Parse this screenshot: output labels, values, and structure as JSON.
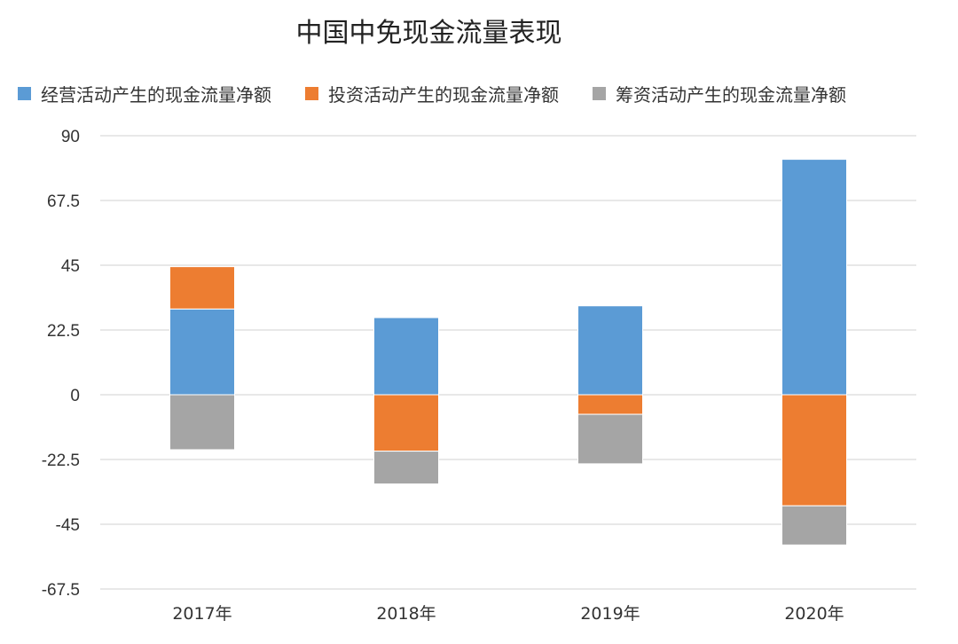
{
  "chart_data": {
    "type": "bar",
    "stacked": true,
    "title": "中国中免现金流量表现",
    "categories": [
      "2017年",
      "2018年",
      "2019年",
      "2020年"
    ],
    "series": [
      {
        "name": "经营活动产生的现金流量净额",
        "color": "#5B9BD5",
        "values": [
          29.8,
          26.8,
          30.9,
          81.8
        ]
      },
      {
        "name": "投资活动产生的现金流量净额",
        "color": "#ED7D31",
        "values": [
          14.7,
          -19.6,
          -6.8,
          -38.6
        ]
      },
      {
        "name": "筹资活动产生的现金流量净额",
        "color": "#A5A5A5",
        "values": [
          -19.1,
          -11.4,
          -17.2,
          -13.6
        ]
      }
    ],
    "y_ticks": [
      "90",
      "67.5",
      "45",
      "22.5",
      "0",
      "-22.5",
      "-45",
      "-67.5"
    ],
    "ylim": [
      -67.5,
      90
    ],
    "grid": true,
    "legend_position": "top"
  }
}
